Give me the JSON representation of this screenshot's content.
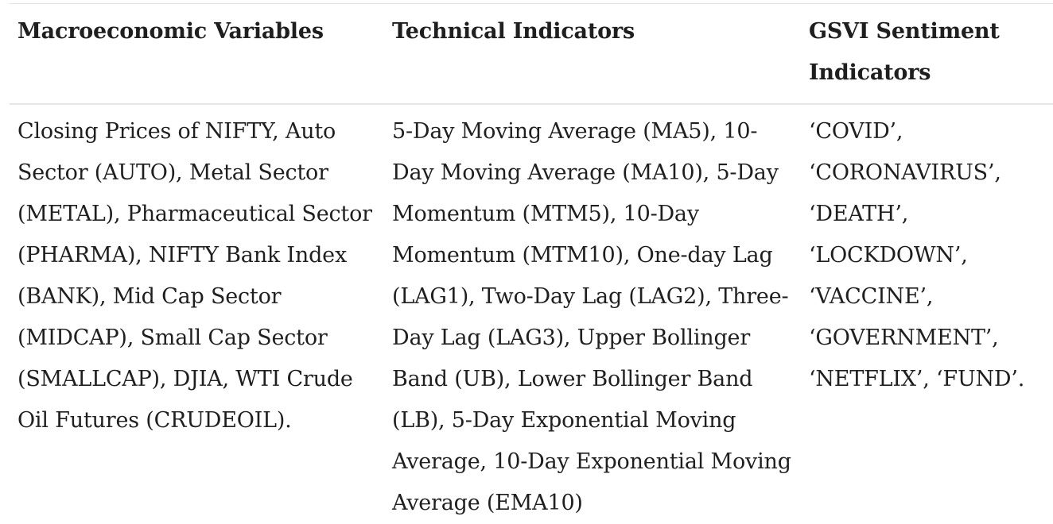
{
  "table": {
    "headers": [
      "Macroeconomic Variables",
      "Technical Indicators",
      "GSVI Sentiment Indicators"
    ],
    "rows": [
      [
        "Closing Prices of NIFTY, Auto Sector (AUTO), Metal Sector (METAL), Pharmaceutical Sector (PHARMA), NIFTY Bank Index (BANK), Mid Cap Sector (MIDCAP), Small Cap Sector (SMALLCAP), DJIA, WTI Crude Oil Futures (CRUDEOIL).",
        "5-Day Moving Average (MA5), 10-Day Moving Average (MA10), 5-Day Momentum (MTM5), 10-Day Momentum (MTM10), One-day Lag (LAG1), Two-Day Lag (LAG2), Three-Day Lag (LAG3), Upper Bollinger Band (UB), Lower Bollinger Band (LB), 5-Day Exponential Moving Average, 10-Day Exponential Moving Average (EMA10)",
        "‘COVID’, ‘CORONAVIRUS’, ‘DEATH’, ‘LOCKDOWN’, ‘VACCINE’, ‘GOVERNMENT’, ‘NETFLIX’, ‘FUND’."
      ]
    ]
  }
}
